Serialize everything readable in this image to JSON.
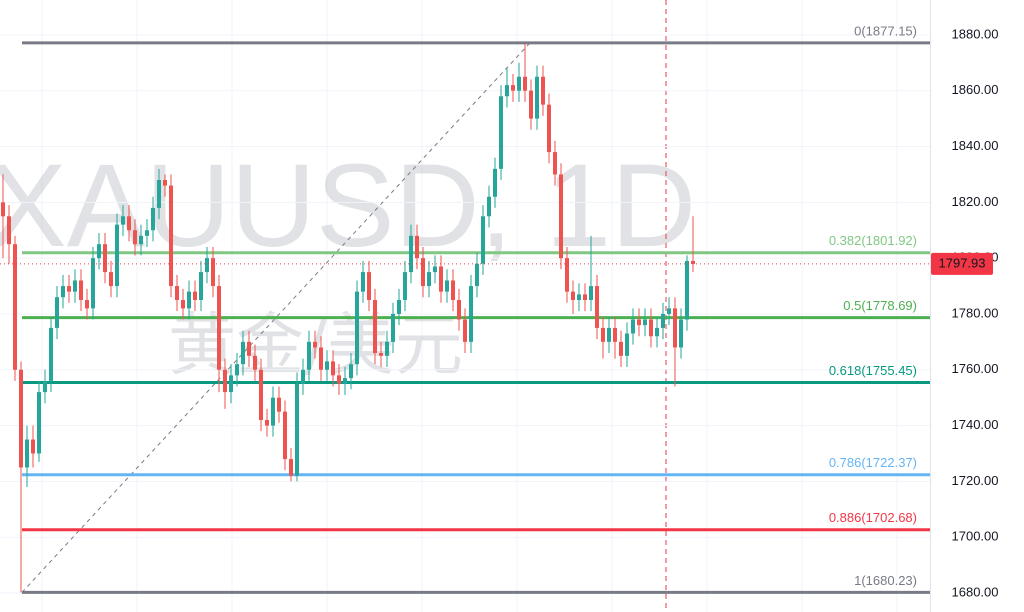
{
  "chart_data": {
    "type": "candlestick",
    "watermark": {
      "symbol": "XAUUSD, 1D",
      "name": "黄金/美元"
    },
    "up_color": "#26a69a",
    "down_color": "#ef5350",
    "open": [
      1820,
      1815,
      1805,
      1760,
      1725,
      1735,
      1730,
      1752,
      1756,
      1775,
      1786,
      1790,
      1788,
      1792,
      1785,
      1782,
      1800,
      1805,
      1795,
      1790,
      1812,
      1815,
      1810,
      1805,
      1808,
      1810,
      1818,
      1828,
      1826,
      1790,
      1785,
      1782,
      1788,
      1785,
      1795,
      1800,
      1790,
      1760,
      1752,
      1758,
      1762,
      1770,
      1765,
      1760,
      1742,
      1740,
      1750,
      1745,
      1728,
      1722,
      1755,
      1760,
      1770,
      1768,
      1760,
      1763,
      1758,
      1755,
      1757,
      1762,
      1788,
      1795,
      1785,
      1766,
      1765,
      1770,
      1780,
      1785,
      1795,
      1808,
      1800,
      1790,
      1795,
      1797,
      1788,
      1792,
      1785,
      1778,
      1770,
      1790,
      1798,
      1815,
      1822,
      1832,
      1858,
      1862,
      1860,
      1865,
      1860,
      1850,
      1865,
      1855,
      1838,
      1830,
      1800,
      1788,
      1785,
      1787,
      1785,
      1790,
      1775,
      1770,
      1775,
      1770,
      1765,
      1773,
      1778,
      1776,
      1778,
      1772,
      1775,
      1780,
      1782,
      1768,
      1778,
      1799
    ],
    "high": [
      1830,
      1819,
      1808,
      1763,
      1740,
      1740,
      1756,
      1760,
      1779,
      1790,
      1794,
      1794,
      1796,
      1796,
      1789,
      1804,
      1809,
      1809,
      1799,
      1816,
      1819,
      1819,
      1814,
      1812,
      1814,
      1822,
      1832,
      1830,
      1830,
      1794,
      1789,
      1792,
      1792,
      1799,
      1804,
      1804,
      1794,
      1764,
      1762,
      1766,
      1774,
      1774,
      1769,
      1764,
      1746,
      1754,
      1754,
      1749,
      1732,
      1759,
      1764,
      1774,
      1774,
      1772,
      1767,
      1767,
      1762,
      1761,
      1766,
      1792,
      1799,
      1799,
      1789,
      1770,
      1774,
      1784,
      1789,
      1799,
      1812,
      1812,
      1804,
      1799,
      1801,
      1801,
      1796,
      1796,
      1789,
      1782,
      1794,
      1802,
      1819,
      1826,
      1836,
      1862,
      1868,
      1866,
      1870,
      1877.15,
      1864,
      1869,
      1869,
      1859,
      1842,
      1834,
      1804,
      1792,
      1791,
      1791,
      1808,
      1794,
      1779,
      1779,
      1779,
      1774,
      1777,
      1782,
      1782,
      1782,
      1782,
      1779,
      1784,
      1786,
      1786,
      1782,
      1801,
      1815
    ],
    "low": [
      1800,
      1798,
      1756,
      1680.23,
      1718,
      1725,
      1727,
      1748,
      1752,
      1771,
      1782,
      1784,
      1784,
      1781,
      1778,
      1778,
      1796,
      1791,
      1786,
      1786,
      1808,
      1806,
      1801,
      1801,
      1804,
      1806,
      1814,
      1822,
      1786,
      1781,
      1778,
      1778,
      1781,
      1781,
      1791,
      1786,
      1752,
      1746,
      1748,
      1754,
      1758,
      1761,
      1756,
      1738,
      1736,
      1736,
      1741,
      1724,
      1720,
      1720,
      1751,
      1756,
      1764,
      1756,
      1756,
      1754,
      1751,
      1751,
      1753,
      1758,
      1784,
      1781,
      1762,
      1761,
      1761,
      1766,
      1776,
      1781,
      1791,
      1796,
      1786,
      1786,
      1791,
      1784,
      1784,
      1781,
      1774,
      1766,
      1766,
      1786,
      1794,
      1811,
      1818,
      1828,
      1854,
      1856,
      1856,
      1856,
      1846,
      1846,
      1851,
      1834,
      1826,
      1796,
      1784,
      1780,
      1781,
      1781,
      1781,
      1771,
      1764,
      1766,
      1764,
      1761,
      1761,
      1769,
      1772,
      1772,
      1768,
      1768,
      1771,
      1776,
      1754,
      1764,
      1774,
      1795
    ],
    "close": [
      1815,
      1805,
      1760,
      1725,
      1735,
      1730,
      1752,
      1756,
      1775,
      1786,
      1790,
      1788,
      1792,
      1785,
      1782,
      1800,
      1805,
      1795,
      1790,
      1812,
      1815,
      1810,
      1805,
      1808,
      1810,
      1818,
      1828,
      1826,
      1790,
      1785,
      1782,
      1788,
      1785,
      1795,
      1800,
      1790,
      1760,
      1752,
      1758,
      1762,
      1770,
      1765,
      1760,
      1742,
      1740,
      1750,
      1745,
      1728,
      1722,
      1755,
      1760,
      1770,
      1768,
      1760,
      1763,
      1758,
      1755,
      1757,
      1762,
      1788,
      1795,
      1785,
      1766,
      1765,
      1770,
      1780,
      1785,
      1795,
      1808,
      1800,
      1790,
      1795,
      1797,
      1788,
      1792,
      1785,
      1778,
      1770,
      1790,
      1798,
      1815,
      1822,
      1832,
      1858,
      1862,
      1860,
      1865,
      1860,
      1850,
      1865,
      1855,
      1838,
      1830,
      1800,
      1788,
      1785,
      1787,
      1785,
      1790,
      1775,
      1770,
      1775,
      1770,
      1765,
      1773,
      1778,
      1776,
      1778,
      1772,
      1775,
      1780,
      1782,
      1768,
      1778,
      1799,
      1797.93
    ],
    "last_price": 1797.93,
    "last_price_color": "#f23645",
    "ylim": [
      1673.2,
      1892.5
    ],
    "yticks": [
      {
        "value": 1680,
        "label": "1680.00"
      },
      {
        "value": 1700,
        "label": "1700.00"
      },
      {
        "value": 1720,
        "label": "1720.00"
      },
      {
        "value": 1740,
        "label": "1740.00"
      },
      {
        "value": 1760,
        "label": "1760.00"
      },
      {
        "value": 1780,
        "label": "1780.00"
      },
      {
        "value": 1800,
        "label": "1800.00"
      },
      {
        "value": 1820,
        "label": "1820.00"
      },
      {
        "value": 1840,
        "label": "1840.00"
      },
      {
        "value": 1860,
        "label": "1860.00"
      },
      {
        "value": 1880,
        "label": "1880.00"
      }
    ],
    "grid": true,
    "fib_levels": [
      {
        "price": 1877.15,
        "label": "0(1877.15)",
        "color": "#787b86"
      },
      {
        "price": 1801.92,
        "label": "0.382(1801.92)",
        "color": "#81c784"
      },
      {
        "price": 1778.69,
        "label": "0.5(1778.69)",
        "color": "#4caf50"
      },
      {
        "price": 1755.45,
        "label": "0.618(1755.45)",
        "color": "#089981"
      },
      {
        "price": 1722.37,
        "label": "0.786(1722.37)",
        "color": "#64b5f6"
      },
      {
        "price": 1702.68,
        "label": "0.886(1702.68)",
        "color": "#f23645"
      },
      {
        "price": 1680.23,
        "label": "1(1680.23)",
        "color": "#787b86"
      }
    ]
  }
}
